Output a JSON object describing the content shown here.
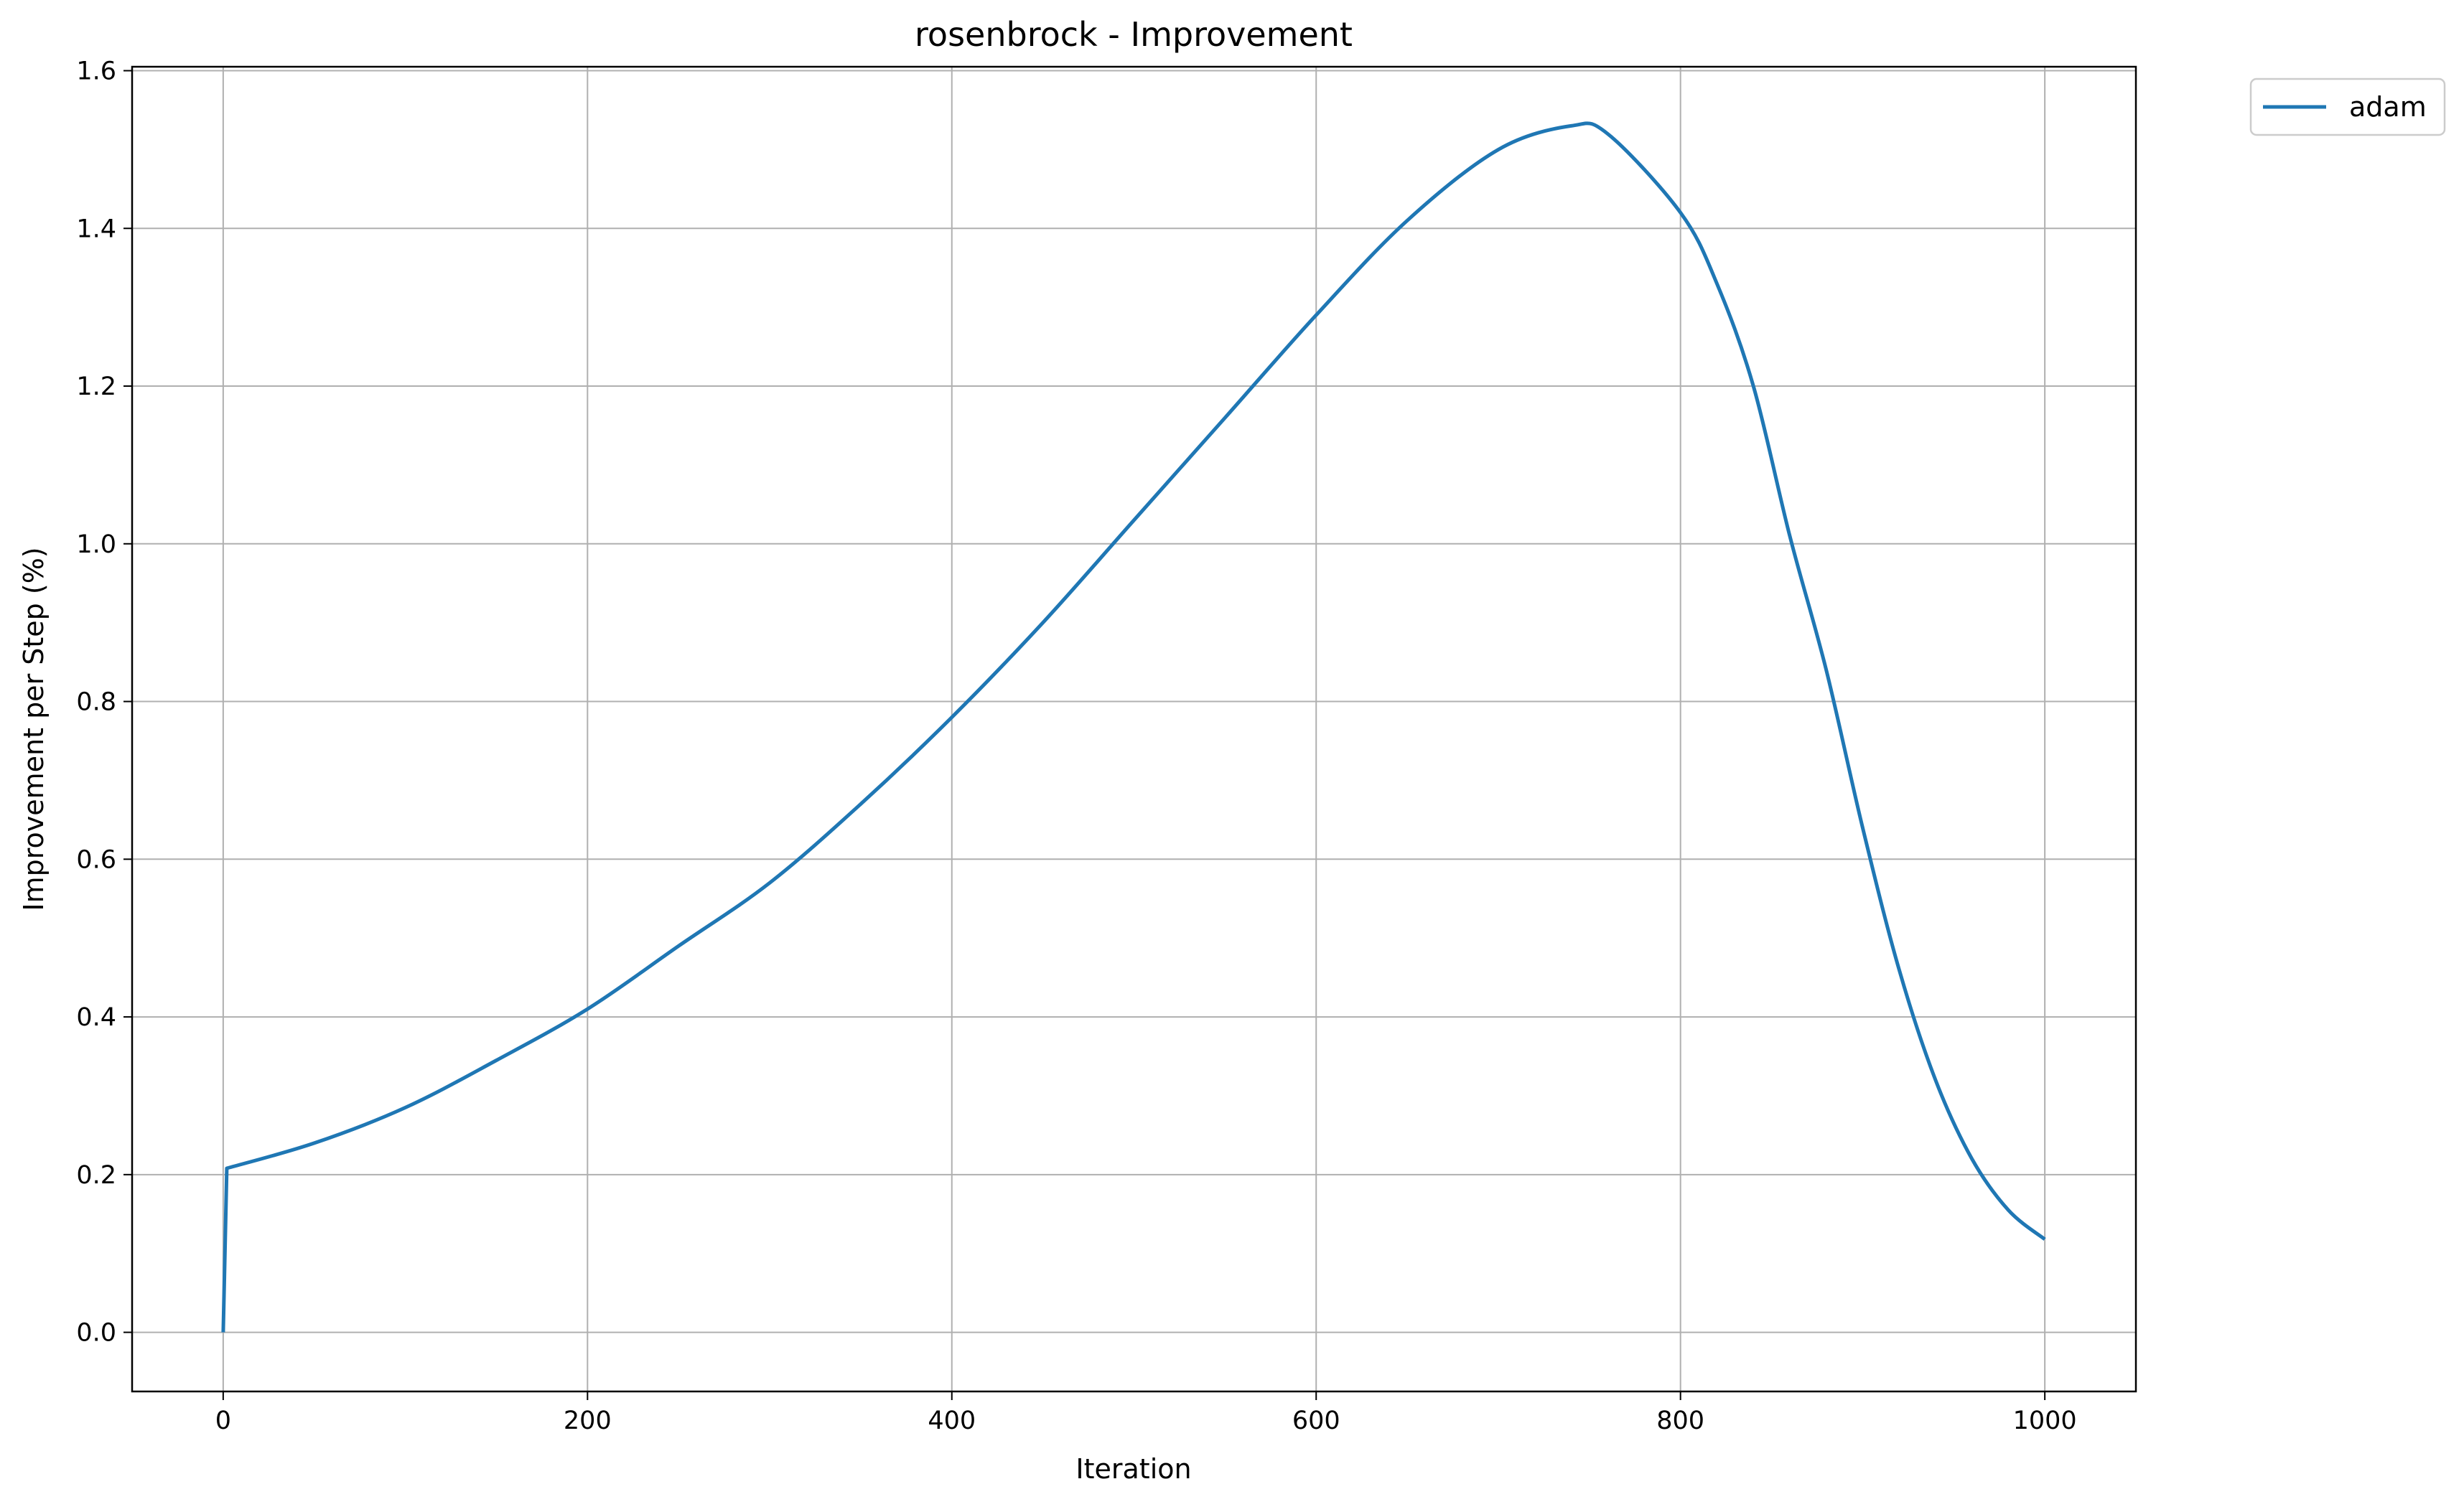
{
  "chart_data": {
    "type": "line",
    "title": "rosenbrock - Improvement",
    "xlabel": "Iteration",
    "ylabel": "Improvement per Step (%)",
    "xlim": [
      -50,
      1050
    ],
    "ylim": [
      -0.075,
      1.605
    ],
    "xticks": [
      0,
      200,
      400,
      600,
      800,
      1000
    ],
    "yticks": [
      0.0,
      0.2,
      0.4,
      0.6,
      0.8,
      1.0,
      1.2,
      1.4,
      1.6
    ],
    "xtick_labels": [
      "0",
      "200",
      "400",
      "600",
      "800",
      "1000"
    ],
    "ytick_labels": [
      "0.0",
      "0.2",
      "0.4",
      "0.6",
      "0.8",
      "1.0",
      "1.2",
      "1.4",
      "1.6"
    ],
    "grid": true,
    "legend": "outside-top-right",
    "series": [
      {
        "name": "adam",
        "color": "#1f77b4",
        "x": [
          0,
          2,
          50,
          100,
          150,
          200,
          250,
          300,
          350,
          400,
          450,
          500,
          550,
          600,
          650,
          700,
          740,
          760,
          800,
          820,
          840,
          860,
          880,
          900,
          920,
          940,
          960,
          980,
          1000
        ],
        "y": [
          0.0,
          0.208,
          0.24,
          0.285,
          0.345,
          0.41,
          0.49,
          0.57,
          0.67,
          0.78,
          0.9,
          1.03,
          1.16,
          1.29,
          1.41,
          1.5,
          1.53,
          1.52,
          1.42,
          1.33,
          1.2,
          1.01,
          0.84,
          0.64,
          0.46,
          0.32,
          0.22,
          0.155,
          0.118
        ]
      }
    ]
  }
}
